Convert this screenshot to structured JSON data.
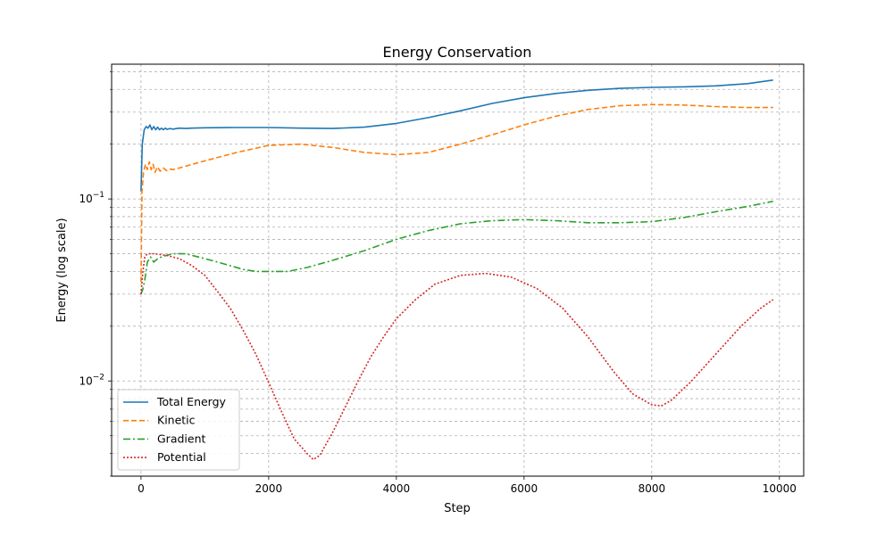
{
  "chart_data": {
    "type": "line",
    "title": "Energy Conservation",
    "xlabel": "Step",
    "ylabel": "Energy (log scale)",
    "xscale": "linear",
    "yscale": "log",
    "xlim": [
      -460,
      10380
    ],
    "ylim": [
      0.003,
      0.55
    ],
    "xticks": [
      0,
      2000,
      4000,
      6000,
      8000,
      10000
    ],
    "xtick_labels": [
      "0",
      "2000",
      "4000",
      "6000",
      "8000",
      "10000"
    ],
    "ytick_labels": [
      {
        "value": 0.01,
        "base": "10",
        "exp": "−2"
      },
      {
        "value": 0.1,
        "base": "10",
        "exp": "−1"
      }
    ],
    "grid": true,
    "legend": {
      "position": "lower-left"
    },
    "colors": {
      "total": "#1f77b4",
      "kinetic": "#ff7f0e",
      "gradient": "#2ca02c",
      "potential": "#d62728",
      "grid": "#b0b0b0"
    },
    "series": [
      {
        "name": "Total Energy",
        "color": "#1f77b4",
        "dash": "",
        "x": [
          0,
          20,
          50,
          80,
          110,
          140,
          170,
          200,
          230,
          260,
          290,
          320,
          350,
          380,
          410,
          450,
          500,
          600,
          700,
          800,
          1000,
          1500,
          2000,
          2500,
          3000,
          3500,
          4000,
          4500,
          5000,
          5500,
          6000,
          6500,
          7000,
          7500,
          8000,
          8500,
          9000,
          9500,
          9900
        ],
        "y": [
          0.11,
          0.2,
          0.24,
          0.25,
          0.245,
          0.255,
          0.24,
          0.25,
          0.24,
          0.248,
          0.24,
          0.245,
          0.24,
          0.245,
          0.241,
          0.244,
          0.242,
          0.245,
          0.244,
          0.245,
          0.246,
          0.247,
          0.247,
          0.245,
          0.244,
          0.248,
          0.26,
          0.28,
          0.305,
          0.335,
          0.36,
          0.38,
          0.395,
          0.405,
          0.41,
          0.413,
          0.418,
          0.43,
          0.45
        ]
      },
      {
        "name": "Kinetic",
        "color": "#ff7f0e",
        "dash": "6,3",
        "x": [
          0,
          15,
          40,
          70,
          100,
          130,
          160,
          190,
          220,
          260,
          300,
          350,
          400,
          450,
          500,
          600,
          800,
          1000,
          1500,
          2000,
          2500,
          3000,
          3500,
          4000,
          4500,
          5000,
          5500,
          6000,
          6500,
          7000,
          7500,
          8000,
          8500,
          9000,
          9500,
          9900
        ],
        "y": [
          0.035,
          0.11,
          0.14,
          0.155,
          0.145,
          0.16,
          0.145,
          0.155,
          0.14,
          0.15,
          0.142,
          0.148,
          0.143,
          0.146,
          0.145,
          0.148,
          0.155,
          0.162,
          0.18,
          0.197,
          0.2,
          0.192,
          0.18,
          0.175,
          0.18,
          0.2,
          0.225,
          0.255,
          0.285,
          0.31,
          0.325,
          0.33,
          0.328,
          0.322,
          0.318,
          0.318
        ]
      },
      {
        "name": "Gradient",
        "color": "#2ca02c",
        "dash": "8,3,2,3",
        "x": [
          0,
          30,
          60,
          100,
          150,
          200,
          260,
          320,
          400,
          500,
          600,
          700,
          800,
          900,
          1000,
          1200,
          1400,
          1600,
          1800,
          2000,
          2300,
          2600,
          3000,
          3500,
          4000,
          4500,
          5000,
          5500,
          6000,
          6500,
          7000,
          7500,
          8000,
          8500,
          9000,
          9500,
          9900
        ],
        "y": [
          0.03,
          0.032,
          0.036,
          0.045,
          0.048,
          0.045,
          0.047,
          0.048,
          0.049,
          0.05,
          0.05,
          0.05,
          0.049,
          0.048,
          0.047,
          0.045,
          0.043,
          0.041,
          0.04,
          0.04,
          0.04,
          0.042,
          0.046,
          0.052,
          0.06,
          0.067,
          0.073,
          0.076,
          0.077,
          0.076,
          0.074,
          0.074,
          0.075,
          0.079,
          0.085,
          0.091,
          0.097
        ]
      },
      {
        "name": "Potential",
        "color": "#d62728",
        "dash": "2,2",
        "x": [
          0,
          30,
          60,
          100,
          200,
          400,
          600,
          800,
          1000,
          1200,
          1400,
          1600,
          1800,
          2000,
          2200,
          2400,
          2600,
          2700,
          2800,
          3000,
          3200,
          3400,
          3600,
          3800,
          4000,
          4300,
          4600,
          5000,
          5400,
          5800,
          6200,
          6600,
          7000,
          7400,
          7700,
          8000,
          8150,
          8300,
          8600,
          9000,
          9400,
          9700,
          9900
        ],
        "y": [
          0.03,
          0.04,
          0.048,
          0.05,
          0.05,
          0.049,
          0.047,
          0.043,
          0.038,
          0.031,
          0.025,
          0.019,
          0.014,
          0.0098,
          0.0068,
          0.0048,
          0.004,
          0.0037,
          0.0039,
          0.0052,
          0.0072,
          0.01,
          0.0136,
          0.0175,
          0.022,
          0.028,
          0.034,
          0.038,
          0.039,
          0.0372,
          0.0322,
          0.0252,
          0.0175,
          0.0113,
          0.0085,
          0.0074,
          0.0073,
          0.0078,
          0.0098,
          0.014,
          0.02,
          0.025,
          0.028
        ]
      }
    ]
  }
}
